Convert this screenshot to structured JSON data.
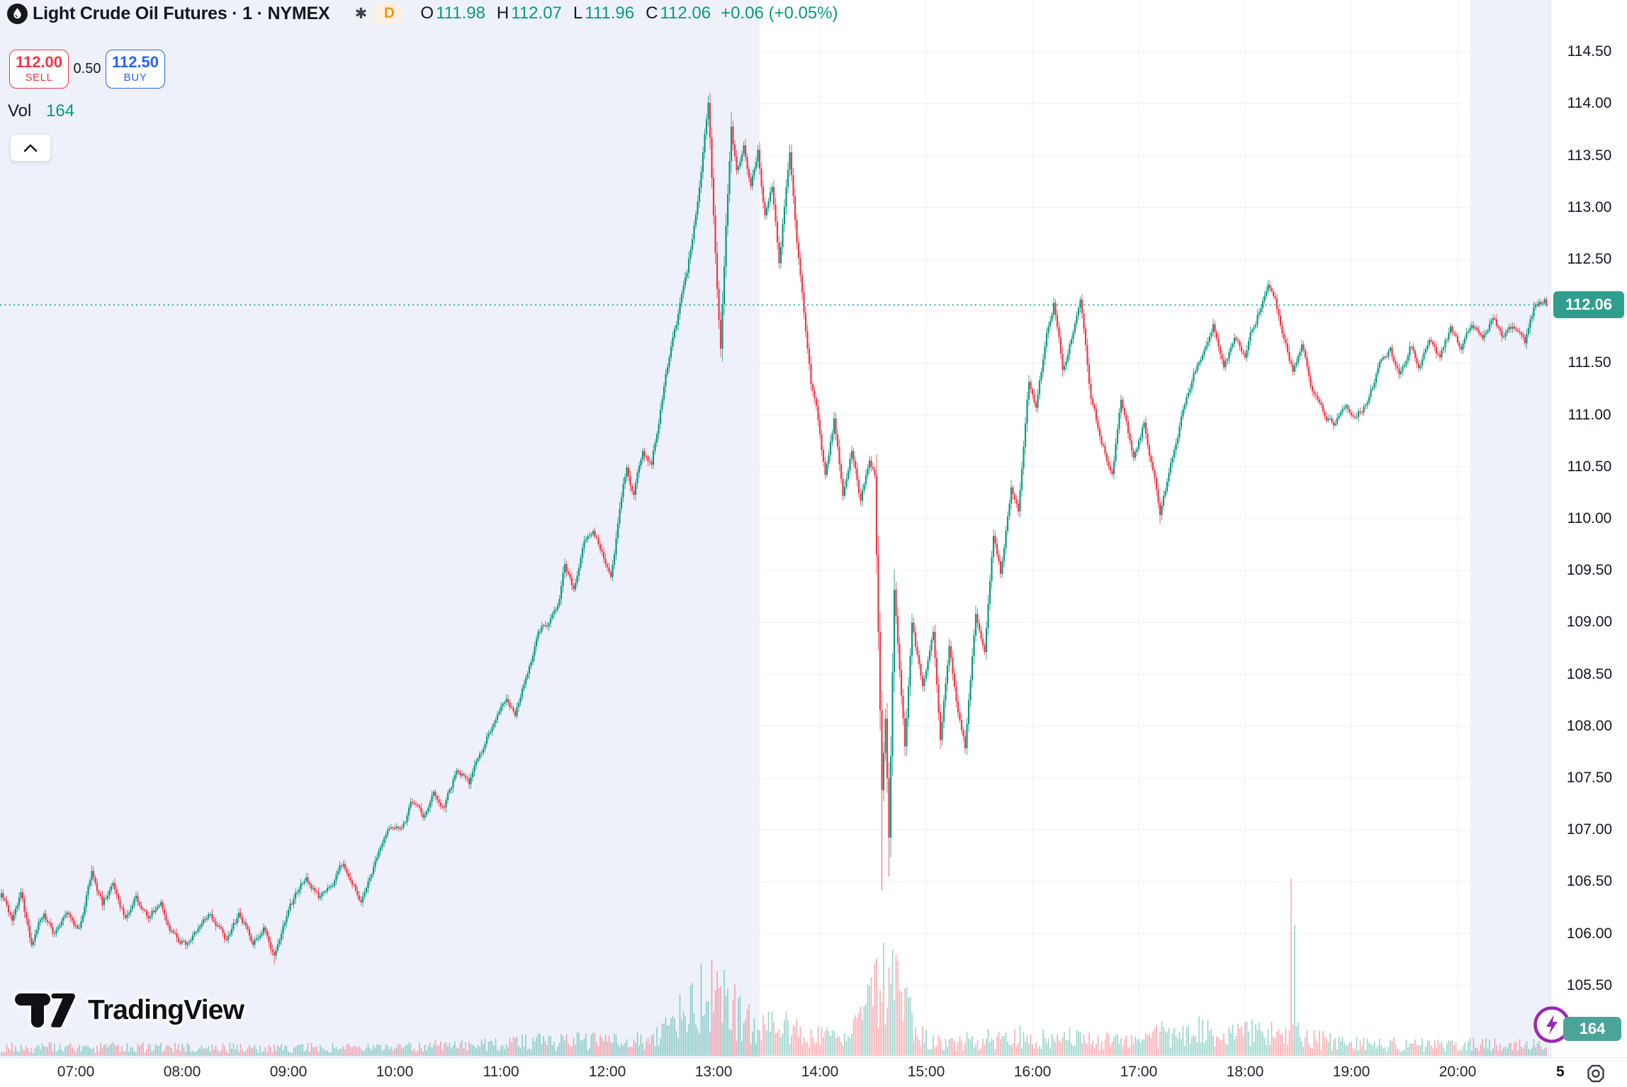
{
  "header": {
    "symbol_title": "Light Crude Oil Futures · 1 · NYMEX",
    "asterisk": "✱",
    "interval_button": "D",
    "ohlc": {
      "o_label": "O",
      "o": "111.98",
      "h_label": "H",
      "h": "112.07",
      "l_label": "L",
      "l": "111.96",
      "c_label": "C",
      "c": "112.06",
      "change": "+0.06 (+0.05%)"
    }
  },
  "trade_panel": {
    "sell_price": "112.00",
    "sell_label": "SELL",
    "spread": "0.50",
    "buy_price": "112.50",
    "buy_label": "BUY"
  },
  "volume_row": {
    "label": "Vol",
    "value": "164"
  },
  "price_axis": {
    "ticks": [
      "114.50",
      "114.00",
      "113.50",
      "113.00",
      "112.50",
      "112.00",
      "111.50",
      "111.00",
      "110.50",
      "110.00",
      "109.50",
      "109.00",
      "108.50",
      "108.00",
      "107.50",
      "107.00",
      "106.50",
      "106.00",
      "105.50"
    ],
    "current_price_label": "112.06"
  },
  "time_axis": {
    "ticks": [
      "07:00",
      "08:00",
      "09:00",
      "10:00",
      "11:00",
      "12:00",
      "13:00",
      "14:00",
      "15:00",
      "16:00",
      "17:00",
      "18:00",
      "19:00",
      "20:00"
    ],
    "day_label": "5"
  },
  "bottom_right": {
    "volume_badge": "164"
  },
  "logo": {
    "text": "TradingView"
  },
  "colors": {
    "up": "#089981",
    "down": "#F23645",
    "up_volume": "rgba(8,153,129,0.42)",
    "down_volume": "rgba(242,54,69,0.42)",
    "accent_green": "#089981",
    "sell_red": "#F23645",
    "buy_blue": "#2962FF",
    "price_badge_bg": "#2f9e8f",
    "volume_badge_bg": "#4aa498",
    "session_shade": "#eef1fa",
    "grid": "#eef0f4",
    "text": "#131722",
    "flash_purple": "#9c27b0",
    "interval_orange": "#f7931a"
  },
  "chart_data": {
    "type": "candlestick",
    "symbol": "Light Crude Oil Futures (NYMEX)",
    "interval_minutes": 1,
    "x_start": "06:18",
    "x_end": "20:50",
    "ylim": [
      105.0,
      115.0
    ],
    "price_step": 0.5,
    "grid": true,
    "current_price": 112.06,
    "last_volume": 164,
    "session_shading": [
      {
        "from": "06:14",
        "to": "13:26"
      },
      {
        "from": "20:07",
        "to": "20:54"
      }
    ],
    "price_path": [
      [
        "06:18",
        106.42
      ],
      [
        "06:24",
        106.15
      ],
      [
        "06:29",
        106.4
      ],
      [
        "06:35",
        105.85
      ],
      [
        "06:42",
        106.18
      ],
      [
        "06:48",
        106.0
      ],
      [
        "06:55",
        106.28
      ],
      [
        "07:02",
        106.08
      ],
      [
        "07:09",
        106.68
      ],
      [
        "07:15",
        106.32
      ],
      [
        "07:21",
        106.48
      ],
      [
        "07:28",
        106.18
      ],
      [
        "07:34",
        106.36
      ],
      [
        "07:41",
        106.1
      ],
      [
        "07:48",
        106.28
      ],
      [
        "07:55",
        106.05
      ],
      [
        "08:04",
        105.9
      ],
      [
        "08:10",
        106.08
      ],
      [
        "08:16",
        106.22
      ],
      [
        "08:24",
        105.98
      ],
      [
        "08:32",
        106.15
      ],
      [
        "08:40",
        105.95
      ],
      [
        "08:46",
        106.1
      ],
      [
        "08:52",
        105.75
      ],
      [
        "09:00",
        106.15
      ],
      [
        "09:10",
        106.52
      ],
      [
        "09:17",
        106.33
      ],
      [
        "09:24",
        106.45
      ],
      [
        "09:31",
        106.65
      ],
      [
        "09:41",
        106.4
      ],
      [
        "09:50",
        106.75
      ],
      [
        "09:57",
        106.92
      ],
      [
        "10:04",
        107.05
      ],
      [
        "10:09",
        107.25
      ],
      [
        "10:16",
        107.08
      ],
      [
        "10:22",
        107.4
      ],
      [
        "10:28",
        107.22
      ],
      [
        "10:35",
        107.6
      ],
      [
        "10:42",
        107.45
      ],
      [
        "10:50",
        107.8
      ],
      [
        "10:57",
        108.1
      ],
      [
        "11:03",
        108.3
      ],
      [
        "11:08",
        108.15
      ],
      [
        "11:15",
        108.5
      ],
      [
        "11:21",
        108.9
      ],
      [
        "11:27",
        109.05
      ],
      [
        "11:32",
        109.25
      ],
      [
        "11:36",
        109.6
      ],
      [
        "11:41",
        109.35
      ],
      [
        "11:47",
        109.85
      ],
      [
        "11:52",
        109.95
      ],
      [
        "11:57",
        109.7
      ],
      [
        "12:02",
        109.45
      ],
      [
        "12:07",
        110.1
      ],
      [
        "12:11",
        110.5
      ],
      [
        "12:15",
        110.25
      ],
      [
        "12:20",
        110.7
      ],
      [
        "12:25",
        110.55
      ],
      [
        "12:30",
        111.1
      ],
      [
        "12:34",
        111.5
      ],
      [
        "12:38",
        111.8
      ],
      [
        "12:42",
        112.1
      ],
      [
        "12:45",
        112.35
      ],
      [
        "12:48",
        112.7
      ],
      [
        "12:52",
        113.2
      ],
      [
        "12:55",
        113.7
      ],
      [
        "12:57",
        114.0
      ],
      [
        "12:59",
        113.3
      ],
      [
        "13:02",
        112.3
      ],
      [
        "13:04",
        111.75
      ],
      [
        "13:07",
        112.9
      ],
      [
        "13:10",
        113.8
      ],
      [
        "13:13",
        113.35
      ],
      [
        "13:17",
        113.6
      ],
      [
        "13:21",
        113.15
      ],
      [
        "13:25",
        113.55
      ],
      [
        "13:29",
        112.9
      ],
      [
        "13:33",
        113.2
      ],
      [
        "13:37",
        112.5
      ],
      [
        "13:40",
        113.05
      ],
      [
        "13:43",
        113.5
      ],
      [
        "13:47",
        112.7
      ],
      [
        "13:51",
        112.0
      ],
      [
        "13:55",
        111.3
      ],
      [
        "13:58",
        111.15
      ],
      [
        "14:03",
        110.45
      ],
      [
        "14:08",
        111.0
      ],
      [
        "14:13",
        110.3
      ],
      [
        "14:18",
        110.7
      ],
      [
        "14:23",
        110.2
      ],
      [
        "14:28",
        110.6
      ],
      [
        "14:31",
        110.5
      ],
      [
        "14:33",
        109.0
      ],
      [
        "14:35",
        107.4
      ],
      [
        "14:37",
        108.1
      ],
      [
        "14:39",
        106.9
      ],
      [
        "14:42",
        109.35
      ],
      [
        "14:45",
        108.5
      ],
      [
        "14:48",
        107.8
      ],
      [
        "14:52",
        109.0
      ],
      [
        "14:58",
        108.35
      ],
      [
        "15:04",
        108.9
      ],
      [
        "15:08",
        107.9
      ],
      [
        "15:13",
        108.8
      ],
      [
        "15:18",
        108.1
      ],
      [
        "15:22",
        107.75
      ],
      [
        "15:28",
        109.1
      ],
      [
        "15:33",
        108.7
      ],
      [
        "15:38",
        109.85
      ],
      [
        "15:42",
        109.5
      ],
      [
        "15:48",
        110.35
      ],
      [
        "15:52",
        110.1
      ],
      [
        "15:58",
        111.3
      ],
      [
        "16:02",
        111.0
      ],
      [
        "16:08",
        111.7
      ],
      [
        "16:12",
        112.05
      ],
      [
        "16:17",
        111.45
      ],
      [
        "16:22",
        111.8
      ],
      [
        "16:27",
        112.1
      ],
      [
        "16:33",
        111.1
      ],
      [
        "16:39",
        110.7
      ],
      [
        "16:45",
        110.45
      ],
      [
        "16:50",
        111.2
      ],
      [
        "16:57",
        110.6
      ],
      [
        "17:03",
        110.95
      ],
      [
        "17:12",
        110.1
      ],
      [
        "17:20",
        110.7
      ],
      [
        "17:28",
        111.25
      ],
      [
        "17:36",
        111.65
      ],
      [
        "17:42",
        111.95
      ],
      [
        "17:48",
        111.55
      ],
      [
        "17:54",
        111.75
      ],
      [
        "18:00",
        111.5
      ],
      [
        "18:08",
        112.0
      ],
      [
        "18:13",
        112.3
      ],
      [
        "18:17",
        112.15
      ],
      [
        "18:22",
        111.75
      ],
      [
        "18:27",
        111.45
      ],
      [
        "18:32",
        111.7
      ],
      [
        "18:38",
        111.2
      ],
      [
        "18:44",
        111.0
      ],
      [
        "18:50",
        110.9
      ],
      [
        "18:57",
        111.1
      ],
      [
        "19:03",
        110.95
      ],
      [
        "19:10",
        111.15
      ],
      [
        "19:16",
        111.45
      ],
      [
        "19:22",
        111.6
      ],
      [
        "19:27",
        111.35
      ],
      [
        "19:33",
        111.65
      ],
      [
        "19:38",
        111.5
      ],
      [
        "19:44",
        111.75
      ],
      [
        "19:50",
        111.55
      ],
      [
        "19:56",
        111.8
      ],
      [
        "20:02",
        111.6
      ],
      [
        "20:08",
        111.85
      ],
      [
        "20:14",
        111.7
      ],
      [
        "20:20",
        111.95
      ],
      [
        "20:26",
        111.75
      ],
      [
        "20:32",
        111.85
      ],
      [
        "20:38",
        111.7
      ],
      [
        "20:43",
        112.0
      ],
      [
        "20:50",
        112.06
      ]
    ],
    "wick_events": [
      [
        "08:52",
        "low",
        105.7
      ],
      [
        "12:57",
        "high",
        114.05
      ],
      [
        "13:10",
        "high",
        113.92
      ],
      [
        "14:35",
        "low",
        106.42
      ],
      [
        "14:39",
        "low",
        106.55
      ],
      [
        "17:12",
        "low",
        109.95
      ]
    ],
    "volume_bumps": [
      [
        "11:50",
        50,
        0.8
      ],
      [
        "12:57",
        14,
        6.0
      ],
      [
        "13:40",
        20,
        2.2
      ],
      [
        "14:38",
        11,
        7.5
      ],
      [
        "16:00",
        35,
        1.4
      ],
      [
        "17:25",
        15,
        2.0
      ],
      [
        "18:15",
        20,
        1.8
      ],
      [
        "19:40",
        60,
        0.4
      ]
    ],
    "volume_spikes": [
      [
        "18:26",
        250,
        "down"
      ],
      [
        "18:28",
        185,
        "up"
      ]
    ],
    "key_points": [
      {
        "time": "06:18",
        "price": 106.42,
        "note": "first visible bar"
      },
      {
        "time": "08:52",
        "price": 105.7,
        "note": "morning low"
      },
      {
        "time": "12:57",
        "price": 114.05,
        "note": "session high spike"
      },
      {
        "time": "14:39",
        "price": 106.55,
        "note": "flash crash low"
      },
      {
        "time": "20:50",
        "price": 112.06,
        "note": "last close"
      }
    ]
  }
}
